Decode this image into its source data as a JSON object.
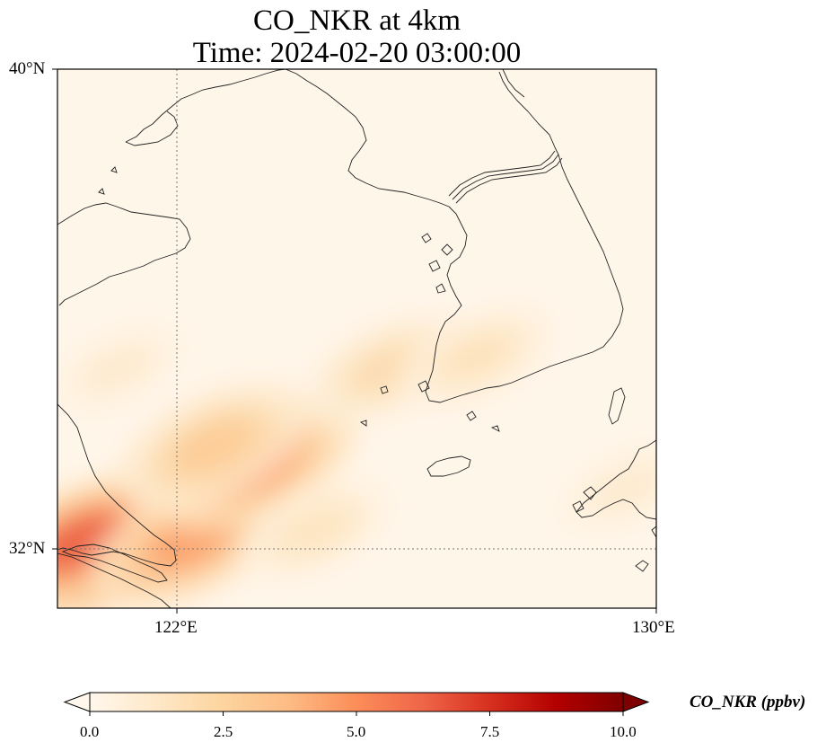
{
  "title": {
    "line1": "CO_NKR at 4km",
    "line2": "Time: 2024-02-20 03:00:00"
  },
  "map": {
    "lon_range": [
      120,
      130
    ],
    "lat_range": [
      31,
      40
    ],
    "gridlines": {
      "lon": [
        122
      ],
      "lat": [
        32
      ],
      "style": "dotted"
    },
    "lat_labels": [
      "40°N",
      "32°N"
    ],
    "lon_labels": [
      "122°E",
      "130°E"
    ],
    "features": [
      "coastlines",
      "country-borders"
    ],
    "field": "CO_NKR",
    "plumes": [
      {
        "lon": 121.0,
        "lat": 32.0,
        "value": 9.0
      },
      {
        "lon": 120.4,
        "lat": 32.1,
        "value": 6.5
      },
      {
        "lon": 122.2,
        "lat": 32.1,
        "value": 4.5
      },
      {
        "lon": 123.3,
        "lat": 33.4,
        "value": 5.0
      },
      {
        "lon": 122.6,
        "lat": 33.7,
        "value": 3.0
      },
      {
        "lon": 125.5,
        "lat": 35.0,
        "value": 2.0
      },
      {
        "lon": 127.0,
        "lat": 35.2,
        "value": 1.6
      },
      {
        "lon": 124.3,
        "lat": 32.3,
        "value": 1.5
      },
      {
        "lon": 121.0,
        "lat": 35.0,
        "value": 1.0
      },
      {
        "lon": 129.5,
        "lat": 33.0,
        "value": 1.0
      }
    ]
  },
  "colorbar": {
    "label": "CO_NKR (ppbv)",
    "cmap": "OrRd",
    "range": [
      0,
      10
    ],
    "extend": "both",
    "ticks": [
      "0.0",
      "2.5",
      "5.0",
      "7.5",
      "10.0"
    ],
    "stops": [
      "#fff7ec",
      "#fee8c8",
      "#fdd49e",
      "#fdbb84",
      "#fc8d59",
      "#ef6548",
      "#d7301f",
      "#b30000",
      "#7f0000"
    ]
  }
}
